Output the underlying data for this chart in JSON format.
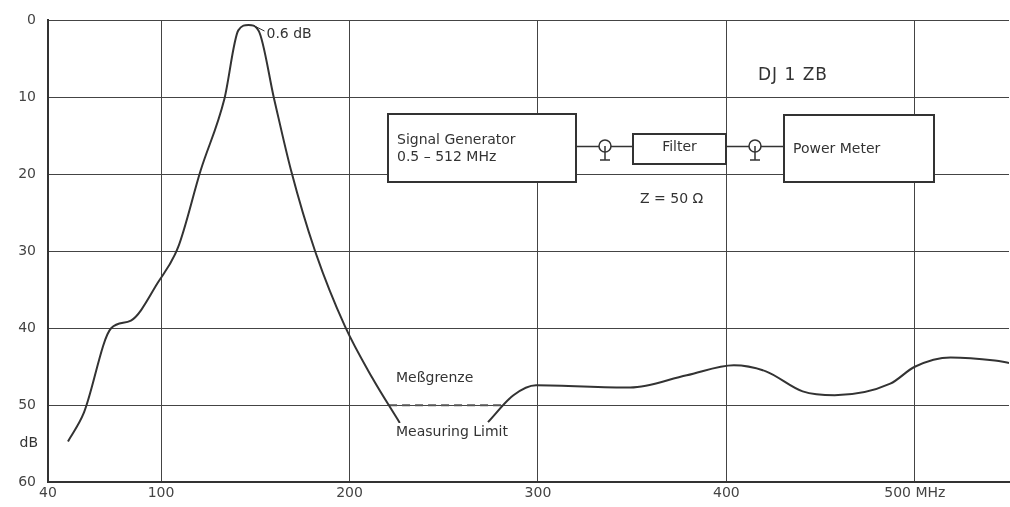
{
  "chart_data": {
    "type": "line",
    "xlim": [
      40,
      550
    ],
    "xticks": [
      40,
      100,
      200,
      300,
      400,
      {
        "value": 500,
        "label": "500 MHz"
      }
    ],
    "ylim": [
      60,
      0
    ],
    "yticks": [
      0,
      10,
      20,
      30,
      40,
      50,
      60
    ],
    "ylabel": "dB",
    "grid": true,
    "legend": false,
    "marker": "none",
    "series": [
      {
        "color": "#333333",
        "x": [
          50.6,
          59,
          73.5,
          84,
          98.5,
          109,
          121,
          133.6,
          141,
          146.4,
          151.7,
          160,
          169,
          181.5,
          197.5,
          212,
          226.7
        ],
        "values": [
          54.7,
          51,
          40,
          39,
          34,
          29.5,
          19.5,
          10.2,
          1.3,
          0.6,
          1.3,
          10.2,
          19.5,
          29.8,
          39.7,
          46.4,
          52.3
        ]
      },
      {
        "color": "#333333",
        "x": [
          273.5,
          287,
          299,
          349,
          379,
          404,
          421,
          440.5,
          457.5,
          487,
          500,
          519,
          542.5,
          550
        ],
        "values": [
          52.2,
          48.7,
          47.4,
          47.7,
          46.1,
          44.8,
          45.6,
          48.2,
          48.7,
          47.2,
          45,
          43.8,
          44.2,
          44.5
        ]
      },
      {
        "color": "#555555",
        "line_style": "dashed",
        "x": [
          221,
          282
        ],
        "values": [
          50,
          50
        ]
      }
    ],
    "annotations": [
      {
        "text": "0.6 dB",
        "x": 146.4,
        "y": 0.6
      },
      "DJ 1 ZB",
      "Meßgrenze",
      "Measuring Limit",
      "Signal Generator",
      "0.5 – 512 MHz",
      "Filter",
      "Power Meter",
      "Z = 50 Ω"
    ]
  }
}
